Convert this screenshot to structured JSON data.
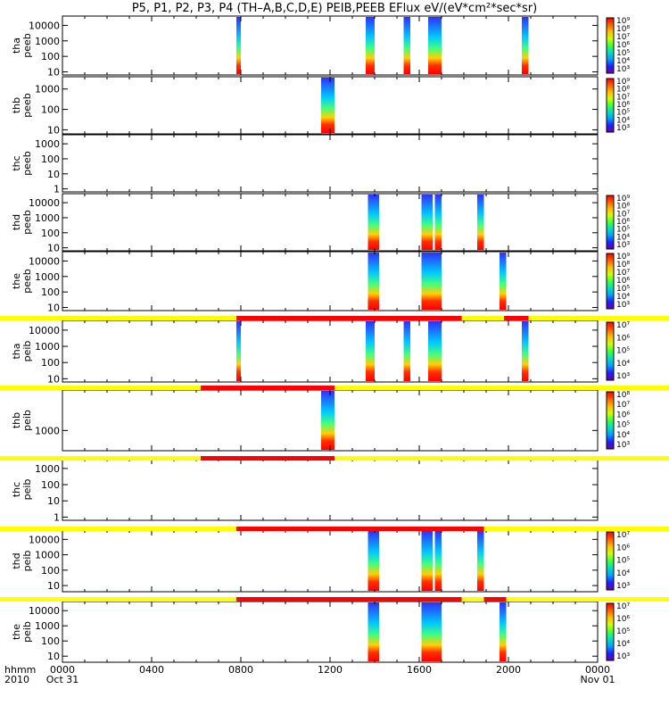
{
  "title": "P5, P1, P2, P3, P4 (TH–A,B,C,D,E) PEIB,PEEB EFlux eV/(eV*cm²*sec*sr)",
  "colors": {
    "flag_yellow": "#ffff00",
    "flag_red": "#ff0000",
    "colormap": [
      "#6a00a8",
      "#2020ff",
      "#00a0ff",
      "#00e0c0",
      "#40ff40",
      "#d0ff00",
      "#ffc000",
      "#ff6000",
      "#ff0000"
    ]
  },
  "chart_data": {
    "type": "heatmap",
    "x_axis": {
      "unit_label": "hhmm",
      "year_label": "2010",
      "ticks": [
        {
          "t": 0,
          "label": "0000",
          "sub": "Oct 31"
        },
        {
          "t": 4,
          "label": "0400",
          "sub": ""
        },
        {
          "t": 8,
          "label": "0800",
          "sub": ""
        },
        {
          "t": 12,
          "label": "1200",
          "sub": ""
        },
        {
          "t": 16,
          "label": "1600",
          "sub": ""
        },
        {
          "t": 20,
          "label": "2000",
          "sub": ""
        },
        {
          "t": 24,
          "label": "0000",
          "sub": "Nov 01"
        }
      ],
      "range_hours": [
        0,
        24
      ]
    },
    "panels": [
      {
        "id": "tha_peeb",
        "probe": "tha",
        "instrument": "peeb",
        "yticks": [
          "10000",
          "1000",
          "100",
          "10"
        ],
        "yrange_log": [
          0.8,
          4.6
        ],
        "colorbar": {
          "labels": [
            "10⁹",
            "10⁸",
            "10⁷",
            "10⁶",
            "10⁵",
            "10⁴",
            "10³"
          ]
        },
        "bursts": [
          {
            "t0": 7.8,
            "t1": 8.0
          },
          {
            "t0": 13.6,
            "t1": 14.0
          },
          {
            "t0": 15.3,
            "t1": 15.6
          },
          {
            "t0": 16.4,
            "t1": 17.0
          },
          {
            "t0": 20.6,
            "t1": 20.9
          }
        ],
        "flag": null
      },
      {
        "id": "thb_peeb",
        "probe": "thb",
        "instrument": "peeb",
        "yticks": [
          "1000",
          "100",
          "10"
        ],
        "yrange_log": [
          0.8,
          3.6
        ],
        "colorbar": {
          "labels": [
            "10⁹",
            "10⁸",
            "10⁷",
            "10⁶",
            "10⁵",
            "10⁴",
            "10³"
          ]
        },
        "bursts": [
          {
            "t0": 11.6,
            "t1": 12.2
          }
        ],
        "flag": null
      },
      {
        "id": "thc_peeb",
        "probe": "thc",
        "instrument": "peeb",
        "yticks": [
          "1000",
          "100",
          "10",
          "1"
        ],
        "yrange_log": [
          -0.2,
          3.6
        ],
        "colorbar": null,
        "bursts": [],
        "flag": null
      },
      {
        "id": "thd_peeb",
        "probe": "thd",
        "instrument": "peeb",
        "yticks": [
          "10000",
          "1000",
          "100",
          "10"
        ],
        "yrange_log": [
          0.8,
          4.6
        ],
        "colorbar": {
          "labels": [
            "10⁹",
            "10⁸",
            "10⁷",
            "10⁶",
            "10⁵",
            "10⁴",
            "10³"
          ]
        },
        "bursts": [
          {
            "t0": 13.7,
            "t1": 14.2
          },
          {
            "t0": 16.1,
            "t1": 16.6
          },
          {
            "t0": 16.7,
            "t1": 17.0
          },
          {
            "t0": 18.6,
            "t1": 18.9
          }
        ],
        "flag": null
      },
      {
        "id": "the_peeb",
        "probe": "the",
        "instrument": "peeb",
        "yticks": [
          "10000",
          "1000",
          "100",
          "10"
        ],
        "yrange_log": [
          0.8,
          4.6
        ],
        "colorbar": {
          "labels": [
            "10⁹",
            "10⁸",
            "10⁷",
            "10⁶",
            "10⁵",
            "10⁴",
            "10³"
          ]
        },
        "bursts": [
          {
            "t0": 13.7,
            "t1": 14.2
          },
          {
            "t0": 16.1,
            "t1": 17.0
          },
          {
            "t0": 19.6,
            "t1": 19.9
          }
        ],
        "flag": null
      },
      {
        "id": "tha_peib",
        "probe": "tha",
        "instrument": "peib",
        "yticks": [
          "10000",
          "1000",
          "100",
          "10"
        ],
        "yrange_log": [
          0.8,
          4.6
        ],
        "colorbar": {
          "labels": [
            "10⁷",
            "10⁶",
            "10⁵",
            "10⁴",
            "10³"
          ]
        },
        "bursts": [
          {
            "t0": 7.8,
            "t1": 8.0
          },
          {
            "t0": 13.6,
            "t1": 14.0
          },
          {
            "t0": 15.3,
            "t1": 15.6
          },
          {
            "t0": 16.4,
            "t1": 17.0
          },
          {
            "t0": 20.6,
            "t1": 20.9
          }
        ],
        "flag": {
          "segments": [
            {
              "t0": 0,
              "t1": 7.8,
              "c": "y"
            },
            {
              "t0": 7.8,
              "t1": 17.9,
              "c": "r"
            },
            {
              "t0": 17.9,
              "t1": 19.8,
              "c": "y"
            },
            {
              "t0": 19.8,
              "t1": 20.9,
              "c": "r"
            },
            {
              "t0": 20.9,
              "t1": 24,
              "c": "y"
            }
          ]
        }
      },
      {
        "id": "thb_peib",
        "probe": "thb",
        "instrument": "peib",
        "yticks": [
          "1000"
        ],
        "yrange_log": [
          2.4,
          4.2
        ],
        "colorbar": {
          "labels": [
            "10⁸",
            "10⁷",
            "10⁶",
            "10⁵",
            "10⁴",
            "10³"
          ]
        },
        "bursts": [
          {
            "t0": 11.6,
            "t1": 12.2
          }
        ],
        "flag": {
          "segments": [
            {
              "t0": 0,
              "t1": 6.2,
              "c": "y"
            },
            {
              "t0": 6.2,
              "t1": 12.2,
              "c": "r"
            },
            {
              "t0": 12.2,
              "t1": 24,
              "c": "y"
            }
          ]
        }
      },
      {
        "id": "thc_peib",
        "probe": "thc",
        "instrument": "peib",
        "yticks": [
          "1000",
          "100",
          "10",
          "1"
        ],
        "yrange_log": [
          -0.2,
          3.6
        ],
        "colorbar": null,
        "bursts": [],
        "flag": {
          "segments": [
            {
              "t0": 0,
              "t1": 6.2,
              "c": "y"
            },
            {
              "t0": 6.2,
              "t1": 12.2,
              "c": "r"
            },
            {
              "t0": 12.2,
              "t1": 24,
              "c": "y"
            }
          ]
        }
      },
      {
        "id": "thd_peib",
        "probe": "thd",
        "instrument": "peib",
        "yticks": [
          "10000",
          "1000",
          "100",
          "10"
        ],
        "yrange_log": [
          0.6,
          4.6
        ],
        "colorbar": {
          "labels": [
            "10⁷",
            "10⁶",
            "10⁵",
            "10⁴",
            "10³"
          ]
        },
        "bursts": [
          {
            "t0": 13.7,
            "t1": 14.2
          },
          {
            "t0": 16.1,
            "t1": 16.6
          },
          {
            "t0": 16.7,
            "t1": 17.0
          },
          {
            "t0": 18.6,
            "t1": 18.9
          }
        ],
        "flag": {
          "segments": [
            {
              "t0": 0,
              "t1": 7.8,
              "c": "y"
            },
            {
              "t0": 7.8,
              "t1": 18.9,
              "c": "r"
            },
            {
              "t0": 18.9,
              "t1": 24,
              "c": "y"
            }
          ]
        }
      },
      {
        "id": "the_peib",
        "probe": "the",
        "instrument": "peib",
        "yticks": [
          "10000",
          "1000",
          "100",
          "10"
        ],
        "yrange_log": [
          0.6,
          4.6
        ],
        "colorbar": {
          "labels": [
            "10⁷",
            "10⁶",
            "10⁵",
            "10⁴",
            "10³"
          ]
        },
        "bursts": [
          {
            "t0": 13.7,
            "t1": 14.2
          },
          {
            "t0": 16.1,
            "t1": 17.0
          },
          {
            "t0": 19.6,
            "t1": 19.9
          }
        ],
        "flag": {
          "segments": [
            {
              "t0": 0,
              "t1": 7.8,
              "c": "y"
            },
            {
              "t0": 7.8,
              "t1": 17.9,
              "c": "r"
            },
            {
              "t0": 17.9,
              "t1": 18.9,
              "c": "y"
            },
            {
              "t0": 18.9,
              "t1": 19.9,
              "c": "r"
            },
            {
              "t0": 19.9,
              "t1": 24,
              "c": "y"
            }
          ]
        }
      }
    ]
  }
}
